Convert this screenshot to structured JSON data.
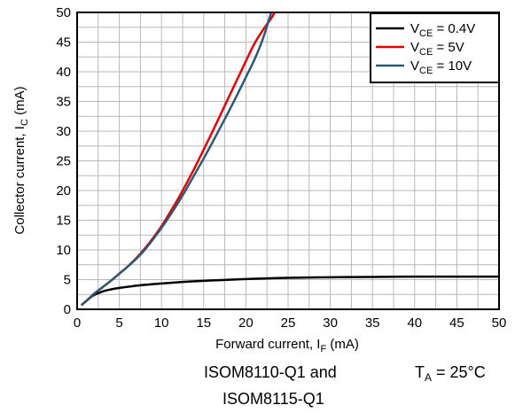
{
  "chart_data": {
    "type": "line",
    "xlabel_main": "Forward current, I",
    "xlabel_sub": "F",
    "xlabel_unit": " (mA)",
    "ylabel_main": "Collector current, I",
    "ylabel_sub": "C",
    "ylabel_unit": " (mA)",
    "xlim": [
      0,
      50
    ],
    "ylim": [
      0,
      50
    ],
    "x_ticks": [
      0,
      5,
      10,
      15,
      20,
      25,
      30,
      35,
      40,
      45,
      50
    ],
    "y_ticks": [
      0,
      5,
      10,
      15,
      20,
      25,
      30,
      35,
      40,
      45,
      50
    ],
    "minor_step": 2.5,
    "grid": true,
    "legend_position": "top-right",
    "series": [
      {
        "name": "V_CE = 0.4V",
        "label_main": "V",
        "label_sub": "CE",
        "label_rest": " = 0.4V",
        "color": "#000000",
        "x": [
          0.5,
          1,
          1.5,
          2,
          3,
          4,
          5,
          7.5,
          10,
          12.5,
          15,
          17.5,
          20,
          22.5,
          25,
          30,
          35,
          40,
          45,
          50
        ],
        "y": [
          0.7,
          1.3,
          1.9,
          2.4,
          3.0,
          3.35,
          3.6,
          4.05,
          4.35,
          4.6,
          4.8,
          4.95,
          5.1,
          5.2,
          5.3,
          5.4,
          5.45,
          5.5,
          5.5,
          5.5
        ]
      },
      {
        "name": "V_CE = 5V",
        "label_main": "V",
        "label_sub": "CE",
        "label_rest": " = 5V",
        "color": "#e00000",
        "x": [
          0.5,
          1,
          2,
          3,
          4,
          5,
          6,
          7,
          8,
          9,
          10,
          11,
          12,
          13,
          14,
          15,
          16,
          17,
          18,
          19,
          20,
          21,
          22,
          23,
          23.4
        ],
        "y": [
          0.7,
          1.3,
          2.6,
          3.7,
          4.8,
          6.0,
          7.2,
          8.6,
          10.2,
          12.0,
          14.0,
          16.3,
          18.7,
          21.3,
          24.0,
          26.9,
          29.8,
          32.8,
          35.8,
          38.8,
          41.8,
          44.7,
          47.0,
          49.0,
          50.0
        ]
      },
      {
        "name": "V_CE = 10V",
        "label_main": "V",
        "label_sub": "CE",
        "label_rest": " = 10V",
        "color": "#2e5874",
        "x": [
          0.5,
          1,
          2,
          3,
          4,
          5,
          6,
          7,
          8,
          9,
          10,
          11,
          12,
          13,
          14,
          15,
          16,
          17,
          18,
          19,
          20,
          21,
          22,
          23
        ],
        "y": [
          0.7,
          1.3,
          2.6,
          3.7,
          4.8,
          6.0,
          7.2,
          8.5,
          10.0,
          11.8,
          13.7,
          15.8,
          18.0,
          20.4,
          22.9,
          25.4,
          28.0,
          30.7,
          33.4,
          36.2,
          39.1,
          42.0,
          45.5,
          50.0
        ]
      }
    ]
  },
  "captions": {
    "device_line1": "ISOM8110-Q1 and",
    "device_line2": "ISOM8115-Q1",
    "temp_main": "T",
    "temp_sub": "A",
    "temp_rest": " = 25°C"
  }
}
